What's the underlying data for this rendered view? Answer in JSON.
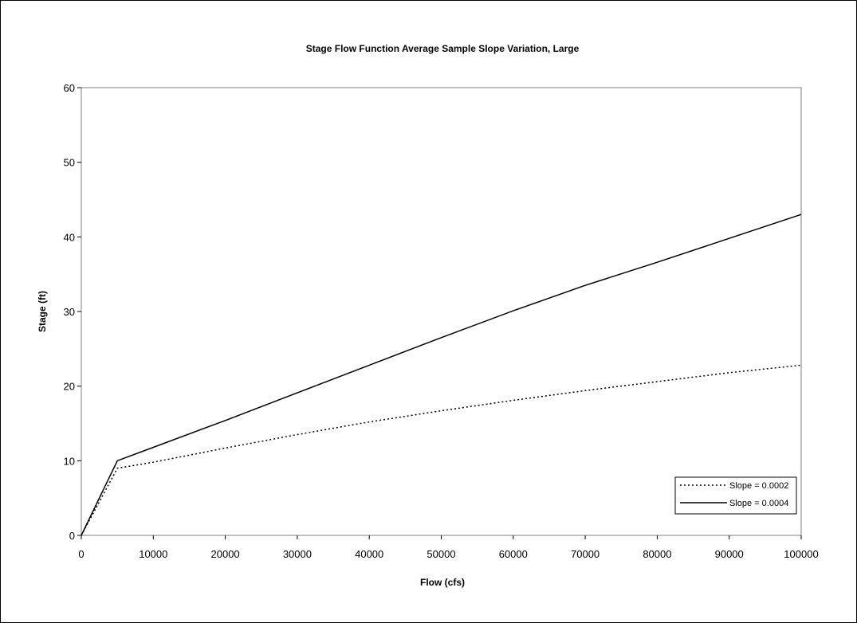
{
  "chart_data": {
    "type": "line",
    "title": "Stage Flow Function Average Sample Slope Variation, Large",
    "xlabel": "Flow  (cfs)",
    "ylabel": "Stage (ft)",
    "xlim": [
      0,
      100000
    ],
    "ylim": [
      0,
      60
    ],
    "xticks": [
      0,
      10000,
      20000,
      30000,
      40000,
      50000,
      60000,
      70000,
      80000,
      90000,
      100000
    ],
    "yticks": [
      0,
      10,
      20,
      30,
      40,
      50,
      60
    ],
    "xtick_labels": [
      "0",
      "10000",
      "20000",
      "30000",
      "40000",
      "50000",
      "60000",
      "70000",
      "80000",
      "90000",
      "100000"
    ],
    "ytick_labels": [
      "0",
      "10",
      "20",
      "30",
      "40",
      "50",
      "60"
    ],
    "grid": false,
    "legend_position": "bottom-right",
    "series": [
      {
        "name": "Slope = 0.0002",
        "style": "dotted",
        "color": "#000000",
        "x": [
          0,
          5000,
          10000,
          20000,
          30000,
          40000,
          50000,
          60000,
          70000,
          80000,
          90000,
          100000
        ],
        "y": [
          0,
          9,
          9.8,
          11.7,
          13.5,
          15.2,
          16.7,
          18.1,
          19.4,
          20.6,
          21.8,
          22.8
        ]
      },
      {
        "name": "Slope = 0.0004",
        "style": "solid",
        "color": "#000000",
        "x": [
          0,
          5000,
          10000,
          20000,
          30000,
          40000,
          50000,
          60000,
          70000,
          80000,
          90000,
          100000
        ],
        "y": [
          0,
          10,
          11.8,
          15.4,
          19.1,
          22.8,
          26.5,
          30.1,
          33.5,
          36.6,
          39.8,
          43
        ]
      }
    ]
  }
}
